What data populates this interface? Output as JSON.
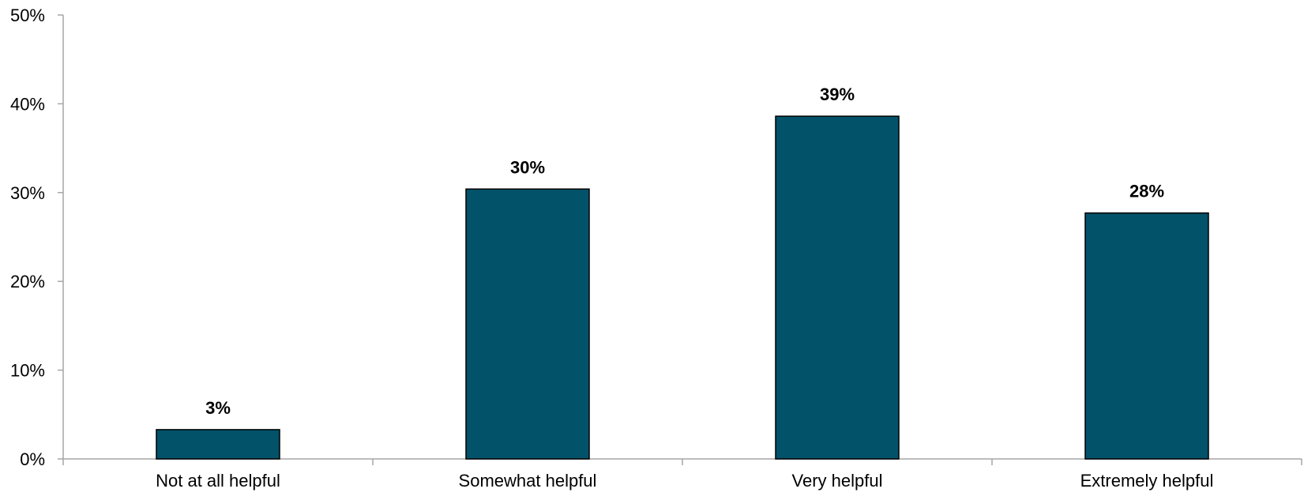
{
  "chart_data": {
    "type": "bar",
    "categories": [
      "Not at all helpful",
      "Somewhat helpful",
      "Very helpful",
      "Extremely helpful"
    ],
    "values": [
      3.3,
      30.4,
      38.6,
      27.7
    ],
    "data_labels": [
      "3%",
      "30%",
      "39%",
      "28%"
    ],
    "title": "",
    "xlabel": "",
    "ylabel": "",
    "ylim": [
      0,
      50
    ],
    "yticks": [
      0,
      10,
      20,
      30,
      40,
      50
    ],
    "ytick_labels": [
      "0%",
      "10%",
      "20%",
      "30%",
      "40%",
      "50%"
    ],
    "grid": false,
    "legend": "none",
    "bar_color": "#02526A",
    "bar_edge_color": "#000000",
    "axis_color": "#A6A6A6"
  }
}
